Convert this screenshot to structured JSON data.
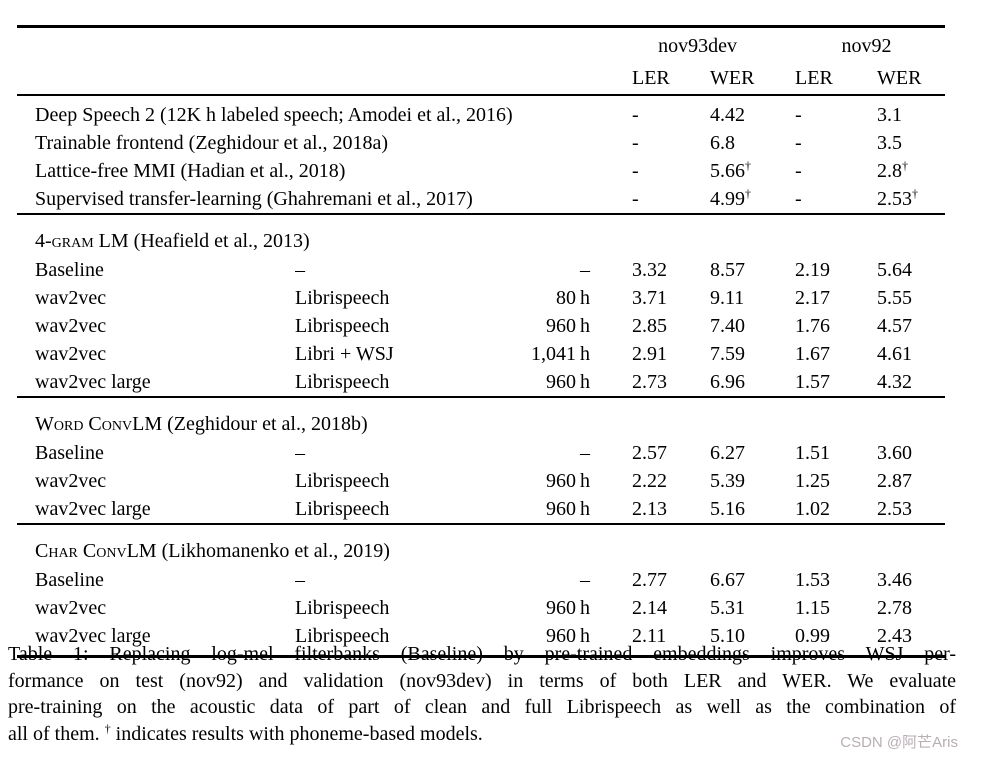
{
  "table": {
    "header": {
      "groups": [
        "nov93dev",
        "nov92"
      ],
      "metrics": [
        "LER",
        "WER",
        "LER",
        "WER"
      ]
    },
    "sections": [
      {
        "title": null,
        "rows": [
          [
            "Deep Speech 2 (12K h labeled speech; Amodei et al., 2016)",
            "-",
            "4.42",
            "-",
            "3.1"
          ],
          [
            "Trainable frontend (Zeghidour et al., 2018a)",
            "-",
            "6.8",
            "-",
            "3.5"
          ],
          [
            "Lattice-free MMI (Hadian et al., 2018)",
            "-",
            "5.66†",
            "-",
            "2.8†"
          ],
          [
            "Supervised transfer-learning (Ghahremani et al., 2017)",
            "-",
            "4.99†",
            "-",
            "2.53†"
          ]
        ]
      },
      {
        "title": {
          "sc": "4-gram LM",
          "rest": " (Heafield et al., 2013)"
        },
        "rows": [
          [
            "Baseline",
            "–",
            "–",
            "3.32",
            "8.57",
            "2.19",
            "5.64"
          ],
          [
            "wav2vec",
            "Librispeech",
            "80 h",
            "3.71",
            "9.11",
            "2.17",
            "5.55"
          ],
          [
            "wav2vec",
            "Librispeech",
            "960 h",
            "2.85",
            "7.40",
            "1.76",
            "4.57"
          ],
          [
            "wav2vec",
            "Libri + WSJ",
            "1,041 h",
            "2.91",
            "7.59",
            "1.67",
            "4.61"
          ],
          [
            "wav2vec large",
            "Librispeech",
            "960 h",
            "2.73",
            "6.96",
            "1.57",
            "4.32"
          ]
        ]
      },
      {
        "title": {
          "sc": "Word ConvLM",
          "rest": " (Zeghidour et al., 2018b)"
        },
        "rows": [
          [
            "Baseline",
            "–",
            "–",
            "2.57",
            "6.27",
            "1.51",
            "3.60"
          ],
          [
            "wav2vec",
            "Librispeech",
            "960 h",
            "2.22",
            "5.39",
            "1.25",
            "2.87"
          ],
          [
            "wav2vec large",
            "Librispeech",
            "960 h",
            "2.13",
            "5.16",
            "1.02",
            "2.53"
          ]
        ]
      },
      {
        "title": {
          "sc": "Char ConvLM",
          "rest": " (Likhomanenko et al., 2019)"
        },
        "rows": [
          [
            "Baseline",
            "–",
            "–",
            "2.77",
            "6.67",
            "1.53",
            "3.46"
          ],
          [
            "wav2vec",
            "Librispeech",
            "960 h",
            "2.14",
            "5.31",
            "1.15",
            "2.78"
          ],
          [
            "wav2vec large",
            "Librispeech",
            "960 h",
            "2.11",
            "5.10",
            "0.99",
            "2.43"
          ]
        ]
      }
    ]
  },
  "caption": {
    "lines": [
      "Table 1: Replacing log-mel filterbanks (Baseline) by pre-trained embeddings improves WSJ per-",
      "formance on test (nov92) and validation (nov93dev) in terms of both LER and WER. We evaluate",
      "pre-training on the acoustic data of part of clean and full Librispeech as well as the combination of",
      "all of them. † indicates results with phoneme-based models."
    ]
  },
  "watermark": {
    "text": "CSDN @阿芒Aris",
    "color": "#b8aeb4"
  }
}
